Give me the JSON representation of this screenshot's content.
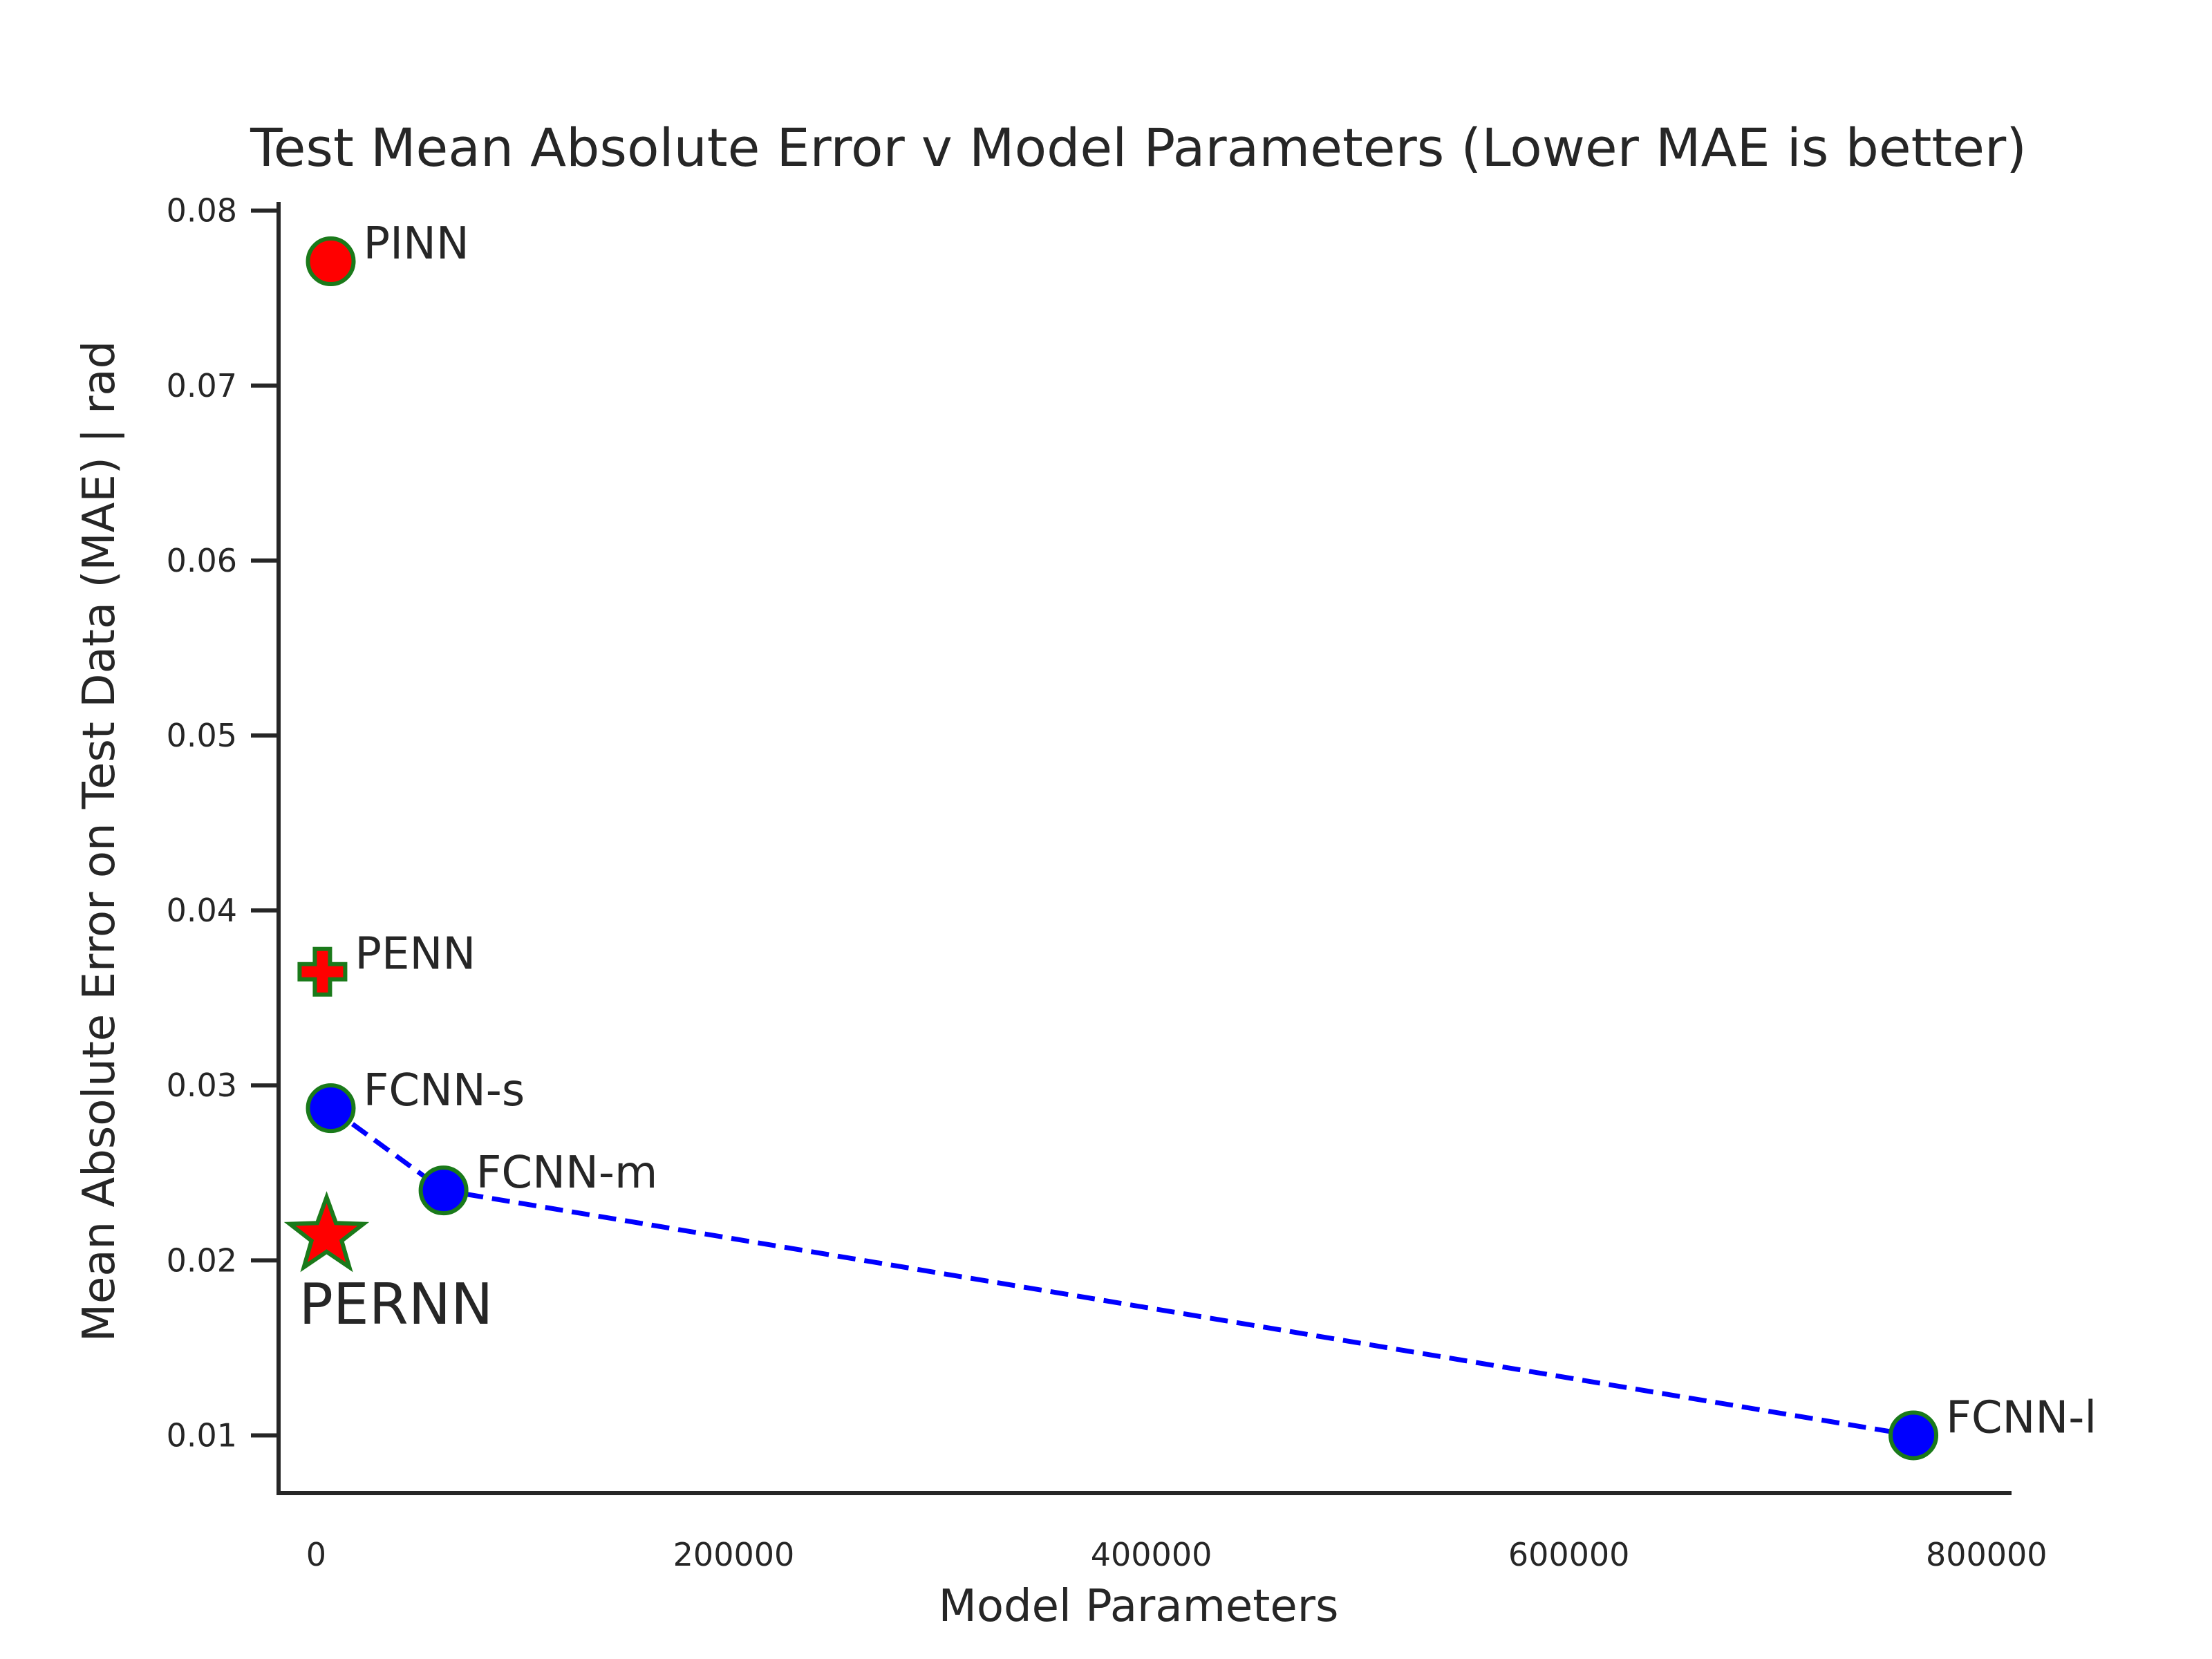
{
  "chart_data": {
    "type": "scatter",
    "title": "Test Mean Absolute Error v Model Parameters (Lower MAE is better)",
    "xlabel": "Model Parameters",
    "ylabel": "Mean Absolute Error on Test Data (MAE) | rad",
    "xlim": [
      -18000,
      812000
    ],
    "ylim": [
      0.0067,
      0.0805
    ],
    "x_ticks": [
      0,
      200000,
      400000,
      600000,
      800000
    ],
    "x_tick_labels": [
      "0",
      "200000",
      "400000",
      "600000",
      "800000"
    ],
    "y_ticks": [
      0.01,
      0.02,
      0.03,
      0.04,
      0.05,
      0.06,
      0.07,
      0.08
    ],
    "y_tick_labels": [
      "0.01",
      "0.02",
      "0.03",
      "0.04",
      "0.05",
      "0.06",
      "0.07",
      "0.08"
    ],
    "grid": false,
    "points": [
      {
        "label": "PINN",
        "x": 7000,
        "y": 0.0771,
        "marker": "circle",
        "fill": "#ff0000",
        "stroke": "#1a7a1a",
        "label_size": "normal"
      },
      {
        "label": "PENN",
        "x": 3000,
        "y": 0.0365,
        "marker": "plus",
        "fill": "#ff0000",
        "stroke": "#1a7a1a",
        "label_size": "normal"
      },
      {
        "label": "FCNN-s",
        "x": 7000,
        "y": 0.0287,
        "marker": "circle",
        "fill": "#0000ff",
        "stroke": "#1a7a1a",
        "label_size": "normal"
      },
      {
        "label": "FCNN-m",
        "x": 61000,
        "y": 0.024,
        "marker": "circle",
        "fill": "#0000ff",
        "stroke": "#1a7a1a",
        "label_size": "normal"
      },
      {
        "label": "PERNN",
        "x": 5000,
        "y": 0.0214,
        "marker": "star",
        "fill": "#ff0000",
        "stroke": "#1a7a1a",
        "label_size": "large",
        "label_position": "below"
      },
      {
        "label": "FCNN-l",
        "x": 765000,
        "y": 0.01,
        "marker": "circle",
        "fill": "#0000ff",
        "stroke": "#1a7a1a",
        "label_size": "normal"
      }
    ],
    "lines": [
      {
        "connects": [
          "FCNN-s",
          "FCNN-m",
          "FCNN-l"
        ],
        "style": "dashed",
        "color": "#0000ff"
      }
    ],
    "colors": {
      "axis": "#262626",
      "text": "#262626",
      "background": "#ffffff"
    }
  }
}
